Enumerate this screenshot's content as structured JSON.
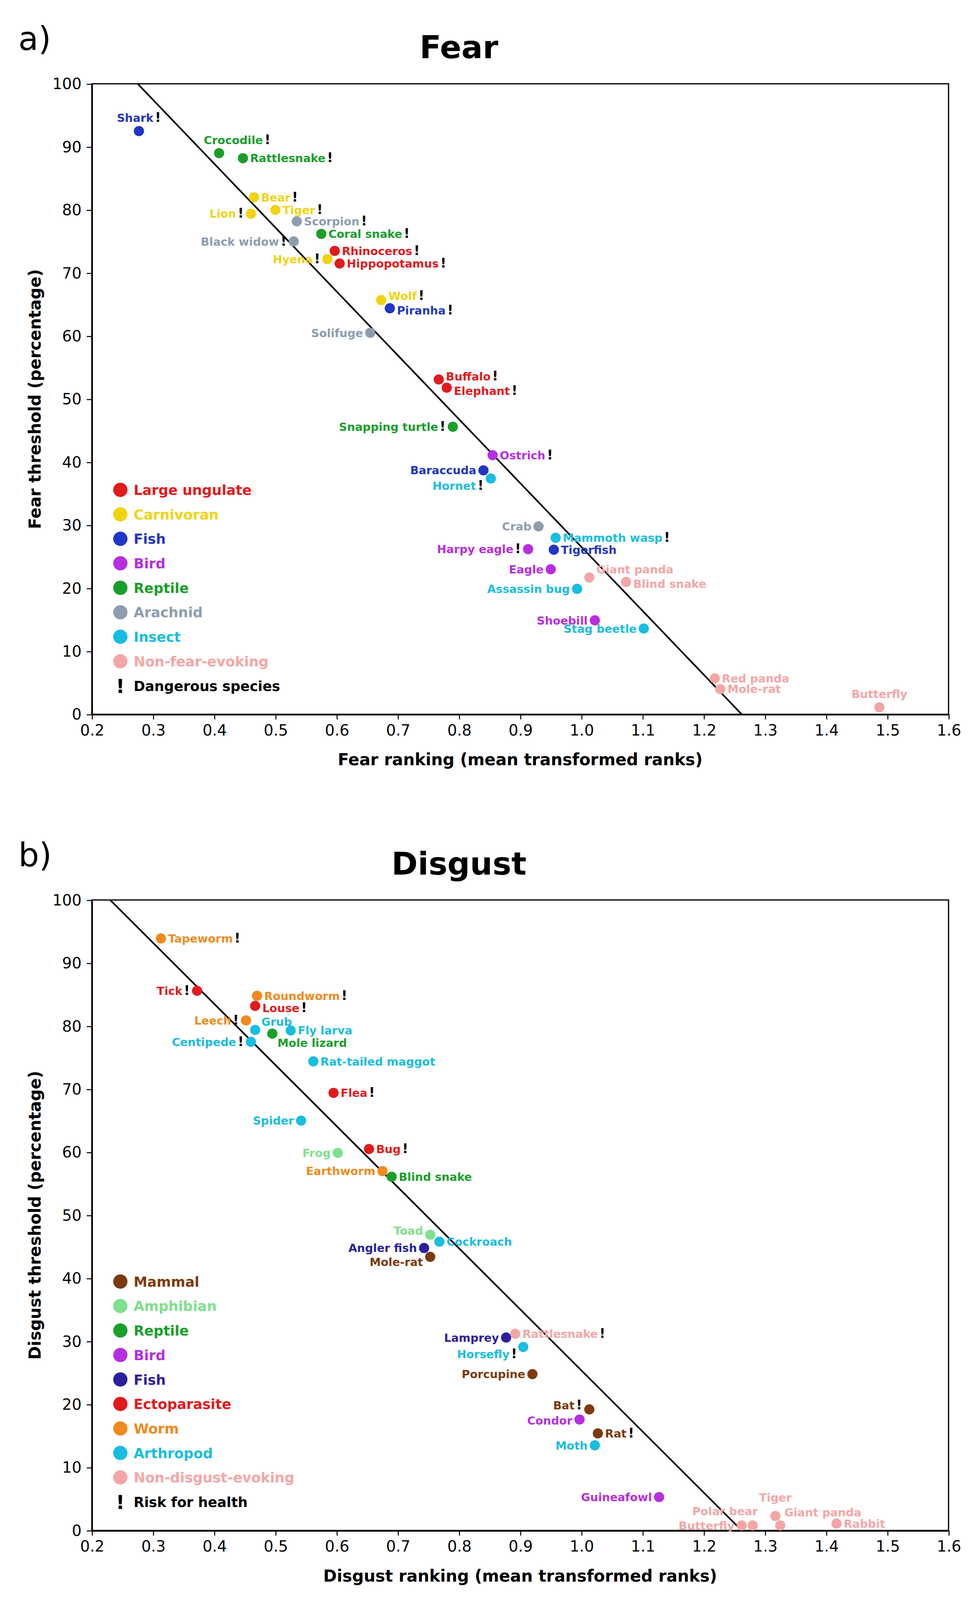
{
  "chart_data": [
    {
      "type": "scatter",
      "panel_label": "a)",
      "title": "Fear",
      "x_label": "Fear ranking (mean transformed ranks)",
      "y_label": "Fear threshold (percentage)",
      "xlim": [
        0.2,
        1.6
      ],
      "xticks": [
        0.2,
        0.3,
        0.4,
        0.5,
        0.6,
        0.7,
        0.8,
        0.9,
        {
          "value": 1,
          "label": "1.0"
        },
        1.1,
        1.2,
        1.3,
        1.4,
        1.5,
        1.6
      ],
      "ylim": [
        0,
        100
      ],
      "yticks": [
        0,
        10,
        20,
        30,
        40,
        50,
        60,
        70,
        80,
        90,
        100
      ],
      "legend": "lower left",
      "legend_note": {
        "symbol": "!",
        "text": "Dangerous species"
      },
      "fit_line": {
        "x": [
          0.275,
          1.262
        ],
        "values": [
          100,
          0
        ]
      },
      "series": [
        {
          "name": "Large ungulate",
          "color": "#e31a1c",
          "labels": [
            "Rhinoceros!",
            "Hippopotamus!",
            "Buffalo!",
            "Elephant!"
          ],
          "x": [
            0.597,
            0.605,
            0.767,
            0.78
          ],
          "values": [
            73.5,
            71.5,
            53.1,
            51.8
          ]
        },
        {
          "name": "Carnivoran",
          "color": "#f2d312",
          "labels": [
            "Bear!",
            "Lion!",
            "Tiger!",
            "Hyena!",
            "Wolf!"
          ],
          "x": [
            0.465,
            0.46,
            0.5,
            0.585,
            0.673
          ],
          "values": [
            82,
            79.4,
            80,
            72.2,
            65.7
          ]
        },
        {
          "name": "Fish",
          "color": "#1f36c7",
          "labels": [
            "Shark!",
            "Piranha!",
            "Baraccuda",
            "Tigerfish"
          ],
          "x": [
            0.277,
            0.687,
            0.84,
            0.955
          ],
          "values": [
            92.5,
            64.4,
            38.7,
            26.1
          ]
        },
        {
          "name": "Bird",
          "color": "#b62ee0",
          "labels": [
            "Ostrich!",
            "Harpy eagle!",
            "Eagle",
            "Shoebill"
          ],
          "x": [
            0.855,
            0.913,
            0.95,
            1.022
          ],
          "values": [
            41.1,
            26.2,
            23,
            14.9
          ]
        },
        {
          "name": "Reptile",
          "color": "#1a9e2a",
          "labels": [
            "Crocodile!",
            "Rattlesnake!",
            "Coral snake!",
            "Snapping turtle!"
          ],
          "x": [
            0.408,
            0.447,
            0.575,
            0.79
          ],
          "values": [
            89,
            88.2,
            76.2,
            45.6
          ]
        },
        {
          "name": "Arachnid",
          "color": "#8c9db0",
          "labels": [
            "Scorpion!",
            "Black widow!",
            "Solifuge",
            "Crab"
          ],
          "x": [
            0.535,
            0.53,
            0.655,
            0.93
          ],
          "values": [
            78.2,
            75,
            60.5,
            29.8
          ]
        },
        {
          "name": "Insect",
          "color": "#19bde0",
          "labels": [
            "Hornet!",
            "Mammoth wasp!",
            "Assassin bug",
            "Stag beetle"
          ],
          "x": [
            0.852,
            0.958,
            0.993,
            1.102
          ],
          "values": [
            37.4,
            28,
            19.9,
            13.6
          ]
        },
        {
          "name": "Non-fear-evoking",
          "color": "#f4a6a6",
          "labels": [
            "Giant panda",
            "Blind snake",
            "Red panda",
            "Mole-rat",
            "Butterfly"
          ],
          "x": [
            1.013,
            1.073,
            1.218,
            1.227,
            1.487
          ],
          "values": [
            21.7,
            21,
            5.7,
            4,
            1.1
          ]
        }
      ]
    },
    {
      "type": "scatter",
      "panel_label": "b)",
      "title": "Disgust",
      "x_label": "Disgust ranking (mean transformed ranks)",
      "y_label": "Disgust threshold (percentage)",
      "xlim": [
        0.2,
        1.6
      ],
      "xticks": [
        0.2,
        0.3,
        0.4,
        0.5,
        0.6,
        0.7,
        0.8,
        0.9,
        {
          "value": 1,
          "label": "1.0"
        },
        1.1,
        1.2,
        1.3,
        1.4,
        1.5,
        1.6
      ],
      "ylim": [
        0,
        100
      ],
      "yticks": [
        0,
        10,
        20,
        30,
        40,
        50,
        60,
        70,
        80,
        90,
        100
      ],
      "legend": "lower left",
      "legend_note": {
        "symbol": "!",
        "text": "Risk for health"
      },
      "fit_line": {
        "x": [
          0.23,
          1.262
        ],
        "values": [
          100,
          0
        ]
      },
      "series": [
        {
          "name": "Mammal",
          "color": "#7b3a0d",
          "labels": [
            "Mole-rat",
            "Porcupine",
            "Bat!",
            "Rat!"
          ],
          "x": [
            0.753,
            0.92,
            1.013,
            1.027
          ],
          "values": [
            43.4,
            24.8,
            19.2,
            15.4
          ]
        },
        {
          "name": "Amphibian",
          "color": "#7fe08e",
          "labels": [
            "Frog",
            "Toad"
          ],
          "x": [
            0.602,
            0.753
          ],
          "values": [
            59.9,
            46.9
          ]
        },
        {
          "name": "Reptile",
          "color": "#18a02a",
          "labels": [
            "Mole lizard",
            "Blind snake"
          ],
          "x": [
            0.495,
            0.69
          ],
          "values": [
            78.8,
            56.1
          ]
        },
        {
          "name": "Bird",
          "color": "#b62ee0",
          "labels": [
            "Condor",
            "Guineafowl"
          ],
          "x": [
            0.997,
            1.127
          ],
          "values": [
            17.6,
            5.3
          ]
        },
        {
          "name": "Fish",
          "color": "#2b1f9e",
          "labels": [
            "Angler fish",
            "Lamprey"
          ],
          "x": [
            0.743,
            0.877
          ],
          "values": [
            44.8,
            30.6
          ]
        },
        {
          "name": "Ectoparasite",
          "color": "#e31a1c",
          "labels": [
            "Tick!",
            "Louse!",
            "Flea!",
            "Bug!"
          ],
          "x": [
            0.372,
            0.467,
            0.595,
            0.653
          ],
          "values": [
            85.6,
            83.2,
            69.4,
            60.5
          ]
        },
        {
          "name": "Worm",
          "color": "#f08a1e",
          "labels": [
            "Tapeworm!",
            "Roundworm!",
            "Leech!",
            "Earthworm"
          ],
          "x": [
            0.313,
            0.47,
            0.452,
            0.675
          ],
          "values": [
            93.9,
            84.8,
            80.9,
            57
          ]
        },
        {
          "name": "Arthropod",
          "color": "#19bde0",
          "labels": [
            "Grub",
            "Fly larva",
            "Centipede!",
            "Rat-tailed maggot",
            "Spider",
            "Cockroach",
            "Horsefly!",
            "Moth"
          ],
          "x": [
            0.467,
            0.525,
            0.46,
            0.562,
            0.542,
            0.768,
            0.905,
            1.022
          ],
          "values": [
            79.4,
            79.3,
            77.5,
            74.4,
            65,
            45.8,
            29.1,
            13.5
          ]
        },
        {
          "name": "Non-disgust-evoking",
          "color": "#f4a6a6",
          "labels": [
            "Rattlesnake!",
            "Butterfly",
            "Polar bear",
            "Tiger",
            "Giant panda",
            "Rabbit"
          ],
          "x": [
            0.892,
            1.262,
            1.28,
            1.317,
            1.325,
            1.417
          ],
          "values": [
            31.2,
            0.8,
            0.8,
            2.3,
            0.8,
            1.1
          ]
        }
      ]
    }
  ]
}
